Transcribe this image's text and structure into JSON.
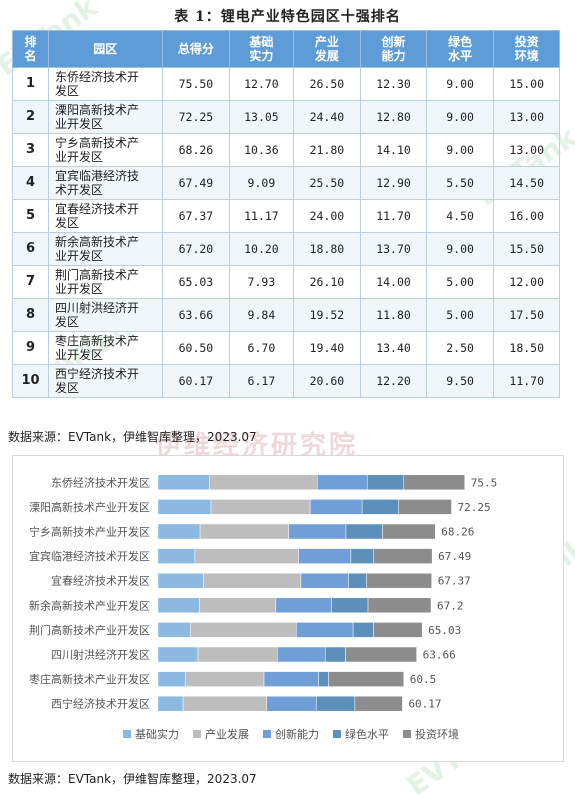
{
  "title": "表 1：锂电产业特色园区十强排名",
  "table": {
    "headers": [
      [
        "排",
        "名"
      ],
      [
        "园区"
      ],
      [
        "总得分"
      ],
      [
        "基础",
        "实力"
      ],
      [
        "产业",
        "发展"
      ],
      [
        "创新",
        "能力"
      ],
      [
        "绿色",
        "水平"
      ],
      [
        "投资",
        "环境"
      ]
    ],
    "rows": [
      {
        "rank": "1",
        "name": [
          "东侨经济技术开",
          "发区"
        ],
        "total": "75.50",
        "v": [
          "12.70",
          "26.50",
          "12.30",
          "9.00",
          "15.00"
        ]
      },
      {
        "rank": "2",
        "name": [
          "溧阳高新技术产",
          "业开发区"
        ],
        "total": "72.25",
        "v": [
          "13.05",
          "24.40",
          "12.80",
          "9.00",
          "13.00"
        ]
      },
      {
        "rank": "3",
        "name": [
          "宁乡高新技术产",
          "业开发区"
        ],
        "total": "68.26",
        "v": [
          "10.36",
          "21.80",
          "14.10",
          "9.00",
          "13.00"
        ]
      },
      {
        "rank": "4",
        "name": [
          "宜宾临港经济技",
          "术开发区"
        ],
        "total": "67.49",
        "v": [
          "9.09",
          "25.50",
          "12.90",
          "5.50",
          "14.50"
        ]
      },
      {
        "rank": "5",
        "name": [
          "宜春经济技术开",
          "发区"
        ],
        "total": "67.37",
        "v": [
          "11.17",
          "24.00",
          "11.70",
          "4.50",
          "16.00"
        ]
      },
      {
        "rank": "6",
        "name": [
          "新余高新技术产",
          "业开发区"
        ],
        "total": "67.20",
        "v": [
          "10.20",
          "18.80",
          "13.70",
          "9.00",
          "15.50"
        ]
      },
      {
        "rank": "7",
        "name": [
          "荆门高新技术产",
          "业开发区"
        ],
        "total": "65.03",
        "v": [
          "7.93",
          "26.10",
          "14.00",
          "5.00",
          "12.00"
        ]
      },
      {
        "rank": "8",
        "name": [
          "四川射洪经济开",
          "发区"
        ],
        "total": "63.66",
        "v": [
          "9.84",
          "19.52",
          "11.80",
          "5.00",
          "17.50"
        ]
      },
      {
        "rank": "9",
        "name": [
          "枣庄高新技术产",
          "业开发区"
        ],
        "total": "60.50",
        "v": [
          "6.70",
          "19.40",
          "13.40",
          "2.50",
          "18.50"
        ]
      },
      {
        "rank": "10",
        "name": [
          "西宁经济技术开",
          "发区"
        ],
        "total": "60.17",
        "v": [
          "6.17",
          "20.60",
          "12.20",
          "9.50",
          "11.70"
        ]
      }
    ]
  },
  "source_text_1": "数据来源：EVTank，伊维智库整理，2023.07",
  "source_text_2": "数据来源：EVTank，伊维智库整理，2023.07",
  "watermark_banner": "伊维经济研究院",
  "watermark_mark": "EVTank",
  "chart_data": {
    "type": "bar",
    "orientation": "horizontal",
    "stacked": true,
    "categories": [
      "东侨经济技术开发区",
      "溧阳高新技术产业开发区",
      "宁乡高新技术产业开发区",
      "宜宾临港经济技术开发区",
      "宜春经济技术开发区",
      "新余高新技术产业开发区",
      "荆门高新技术产业开发区",
      "四川射洪经济开发区",
      "枣庄高新技术产业开发区",
      "西宁经济技术开发区"
    ],
    "series": [
      {
        "name": "基础实力",
        "color": "#8bb9e2",
        "values": [
          12.7,
          13.05,
          10.36,
          9.09,
          11.17,
          10.2,
          7.93,
          9.84,
          6.7,
          6.17
        ]
      },
      {
        "name": "产业发展",
        "color": "#bdbdbd",
        "values": [
          26.5,
          24.4,
          21.8,
          25.5,
          24.0,
          18.8,
          26.1,
          19.52,
          19.4,
          20.6
        ]
      },
      {
        "name": "创新能力",
        "color": "#6f9fd6",
        "values": [
          12.3,
          12.8,
          14.1,
          12.9,
          11.7,
          13.7,
          14.0,
          11.8,
          13.4,
          12.2
        ]
      },
      {
        "name": "绿色水平",
        "color": "#5c8fba",
        "values": [
          9.0,
          9.0,
          9.0,
          5.5,
          4.5,
          9.0,
          5.0,
          5.0,
          2.5,
          9.5
        ]
      },
      {
        "name": "投资环境",
        "color": "#8c8c8c",
        "values": [
          15.0,
          13.0,
          13.0,
          14.5,
          16.0,
          15.5,
          12.0,
          17.5,
          18.5,
          11.7
        ]
      }
    ],
    "totals": [
      "75.5",
      "72.25",
      "68.26",
      "67.49",
      "67.37",
      "67.2",
      "65.03",
      "63.66",
      "60.5",
      "60.17"
    ],
    "xlim": [
      0,
      80
    ],
    "grid": false,
    "legend_position": "bottom"
  }
}
